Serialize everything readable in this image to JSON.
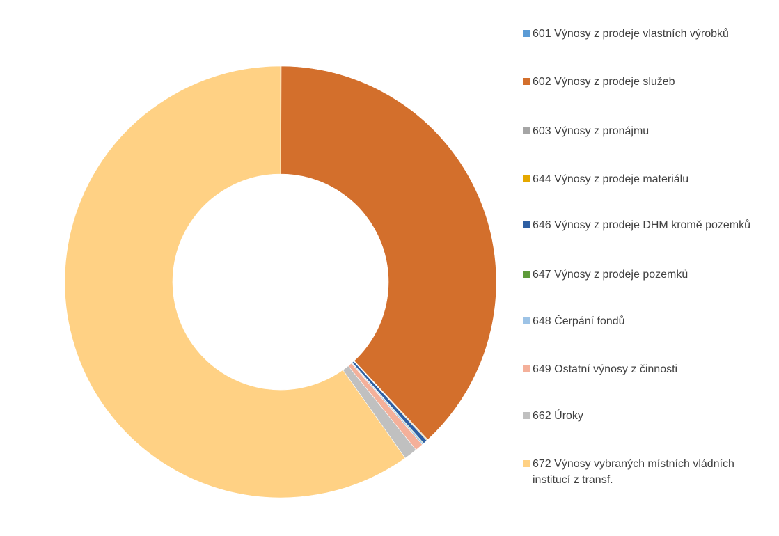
{
  "chart_data": {
    "type": "pie",
    "title": "",
    "donut": true,
    "legend_position": "right",
    "series": [
      {
        "label": "601 Výnosy z prodeje vlastních výrobků",
        "color": "#5b9bd5",
        "value": 0.05
      },
      {
        "label": "602 Výnosy z prodeje služeb",
        "color": "#d36f2c",
        "value": 38.0
      },
      {
        "label": "603 Výnosy z pronájmu",
        "color": "#a5a5a5",
        "value": 0.05
      },
      {
        "label": "644 Výnosy z prodeje materiálu",
        "color": "#e5a800",
        "value": 0.05
      },
      {
        "label": "646 Výnosy z prodeje DHM kromě pozemků",
        "color": "#2e5fa3",
        "value": 0.3
      },
      {
        "label": "647 Výnosy z prodeje pozemků",
        "color": "#5e9b3a",
        "value": 0.05
      },
      {
        "label": "648 Čerpání fondů",
        "color": "#9dc3e6",
        "value": 0.1
      },
      {
        "label": "649 Ostatní výnosy z činnosti",
        "color": "#f4b09a",
        "value": 0.6
      },
      {
        "label": "662 Úroky",
        "color": "#c0c0c0",
        "value": 1.0
      },
      {
        "label": "672 Výnosy vybraných místních vládních institucí z transf.",
        "color": "#ffd184",
        "value": 59.8
      }
    ]
  }
}
